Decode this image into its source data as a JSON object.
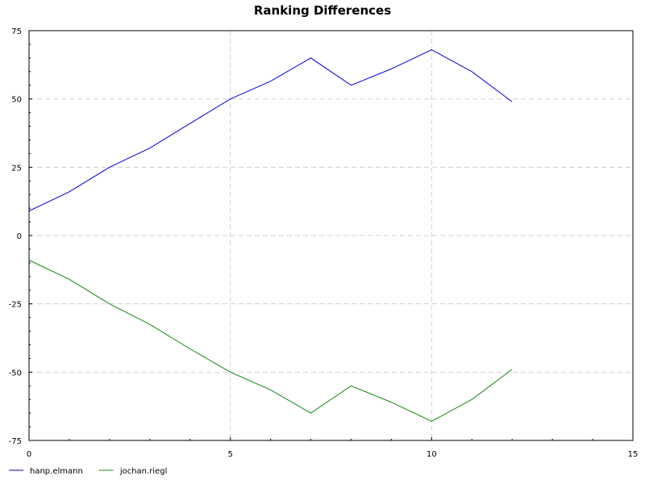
{
  "chart_data": {
    "type": "line",
    "title": "Ranking Differences",
    "xlabel": "",
    "ylabel": "",
    "xlim": [
      0,
      15
    ],
    "ylim": [
      -75,
      75
    ],
    "xticks": [
      0,
      5,
      10,
      15
    ],
    "yticks": [
      75,
      50,
      25,
      0,
      -25,
      -50,
      -75
    ],
    "x_minor_step": 1,
    "y_minor_step": 5,
    "grid": true,
    "legend_position": "bottom-left",
    "series": [
      {
        "name": "hanp.elmann",
        "color": "#0000dd",
        "x": [
          0,
          1,
          2,
          3,
          4,
          5,
          6,
          7,
          8,
          9,
          10,
          11,
          12
        ],
        "values": [
          9,
          16,
          25,
          32,
          41,
          50,
          56.5,
          65,
          55,
          61,
          68,
          60,
          49
        ]
      },
      {
        "name": "jochan.riegl",
        "color": "#118811",
        "x": [
          0,
          1,
          2,
          3,
          4,
          5,
          6,
          7,
          8,
          9,
          10,
          11,
          12
        ],
        "values": [
          -9,
          -16,
          -25,
          -32.5,
          -41.5,
          -50,
          -56.5,
          -65,
          -55,
          -61,
          -68,
          -60,
          -49
        ]
      }
    ]
  }
}
